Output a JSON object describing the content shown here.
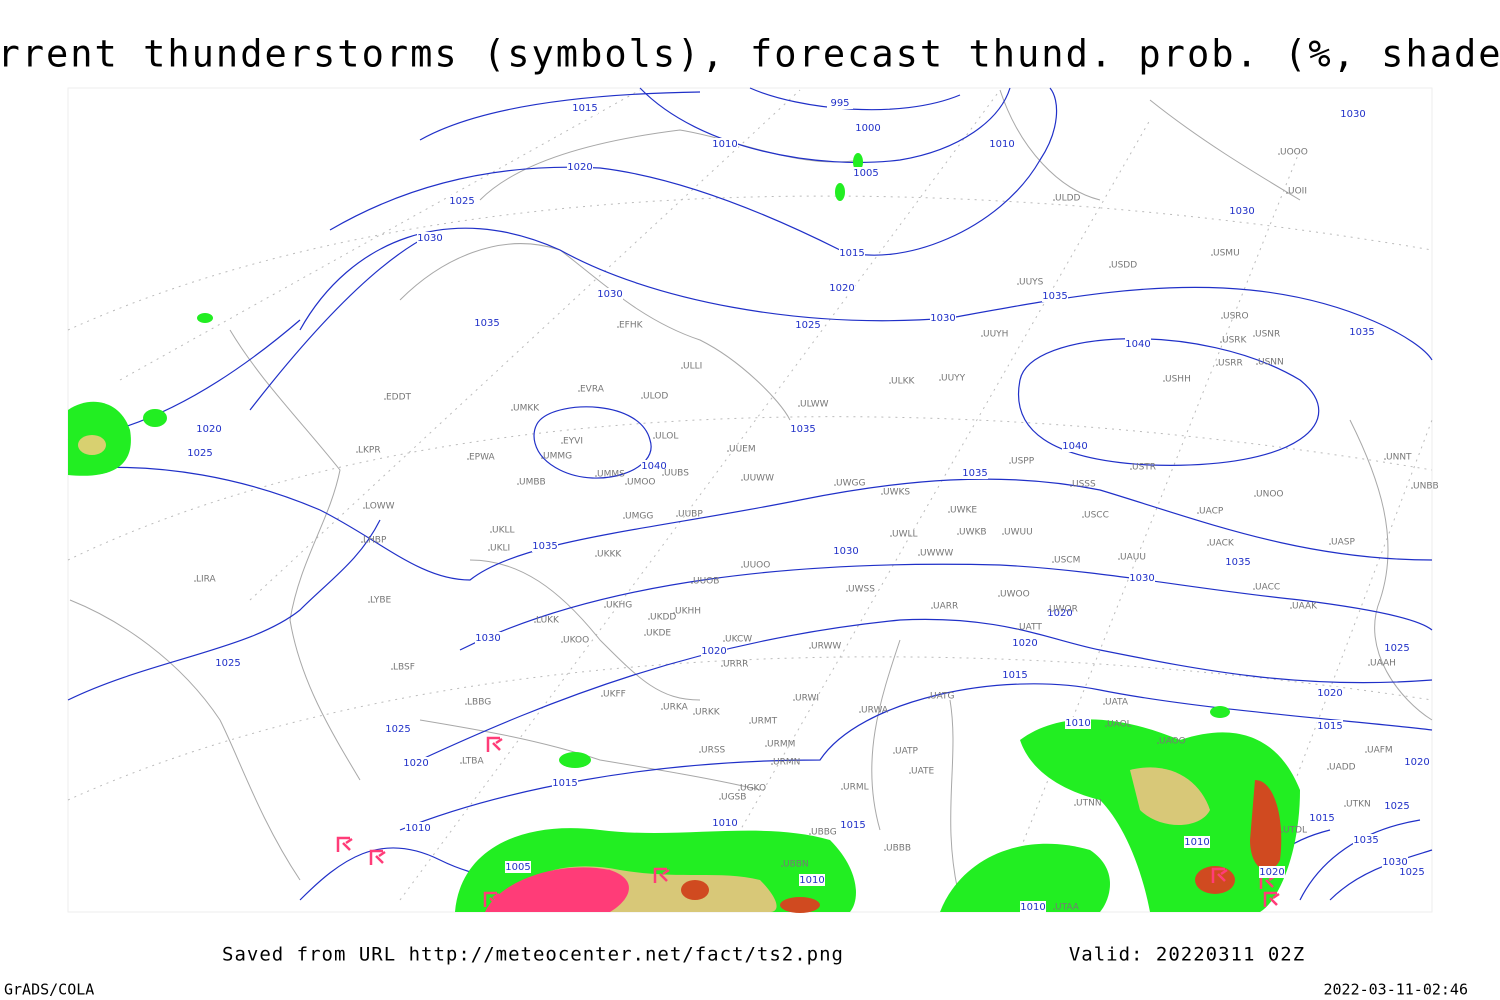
{
  "title": "Current thunderstorms (symbols), forecast thund. prob. (%, shaded)",
  "isobar_labels": [
    "1015",
    "995",
    "1000",
    "1010",
    "1010",
    "1030",
    "1020",
    "1005",
    "1025",
    "1030",
    "1030",
    "1015",
    "1020",
    "1035",
    "1030",
    "1025",
    "1030",
    "1035",
    "1035",
    "1040",
    "1035",
    "1020",
    "1025",
    "1040",
    "1040",
    "1035",
    "1035",
    "1030",
    "1035",
    "1030",
    "1020",
    "1030",
    "1020",
    "1020",
    "1025",
    "1025",
    "1015",
    "1020",
    "1010",
    "1015",
    "1025",
    "1020",
    "1020",
    "1015",
    "1025",
    "1010",
    "1010",
    "1015",
    "1015",
    "1010",
    "1005",
    "1035",
    "1030",
    "1025",
    "1020",
    "1010",
    "1010"
  ],
  "stations": [
    "EFHK",
    "ULLI",
    "EVRA",
    "ULOD",
    "UMKK",
    "EDDT",
    "ULOL",
    "EYVI",
    "UUEM",
    "LKPR",
    "EPWA",
    "UMMG",
    "UMMS",
    "UMOO",
    "UUBS",
    "UUWW",
    "UWGG",
    "UMBB",
    "LOWW",
    "UKLL",
    "UMGG",
    "UUBP",
    "LHBP",
    "UKLI",
    "UKKK",
    "UUOO",
    "LIRA",
    "UUOB",
    "UWSS",
    "LYBE",
    "UKHG",
    "UKDD",
    "UKHH",
    "LUKK",
    "UKOO",
    "UKDE",
    "UKCW",
    "URWW",
    "LBSF",
    "URRR",
    "UKFF",
    "URWI",
    "LBBG",
    "URKA",
    "URKK",
    "URMT",
    "URSS",
    "URMM",
    "LTBA",
    "URMN",
    "UGKO",
    "UGSB",
    "URML",
    "UBBG",
    "UBBB",
    "UBBN",
    "ULDD",
    "USDD",
    "USMU",
    "UUYS",
    "USRO",
    "UUYH",
    "USRK",
    "USNR",
    "USRR",
    "USNN",
    "ULKK",
    "UUYY",
    "ULWW",
    "USHH",
    "USPP",
    "USTR",
    "UNNT",
    "UNBB",
    "USSS",
    "UNOO",
    "UWKS",
    "UWKE",
    "USCC",
    "UACP",
    "UWLL",
    "UWKB",
    "UWUU",
    "UACK",
    "UASP",
    "UWWW",
    "USCM",
    "UAUU",
    "UACC",
    "UWOO",
    "UAAK",
    "UARR",
    "UWOR",
    "UATT",
    "UAAH",
    "UATG",
    "UATA",
    "UAOL",
    "URWA",
    "UATP",
    "UATE",
    "UAOO",
    "UADD",
    "UAFM",
    "UTNN",
    "UTKN",
    "UTDL",
    "UTAA",
    "UOII",
    "UOOO"
  ],
  "footer": {
    "source": "Saved from URL http://meteocenter.net/fact/ts2.png",
    "valid": "Valid: 20220311 02Z",
    "software": "GrADS/COLA",
    "timestamp": "2022-03-11-02:46"
  }
}
